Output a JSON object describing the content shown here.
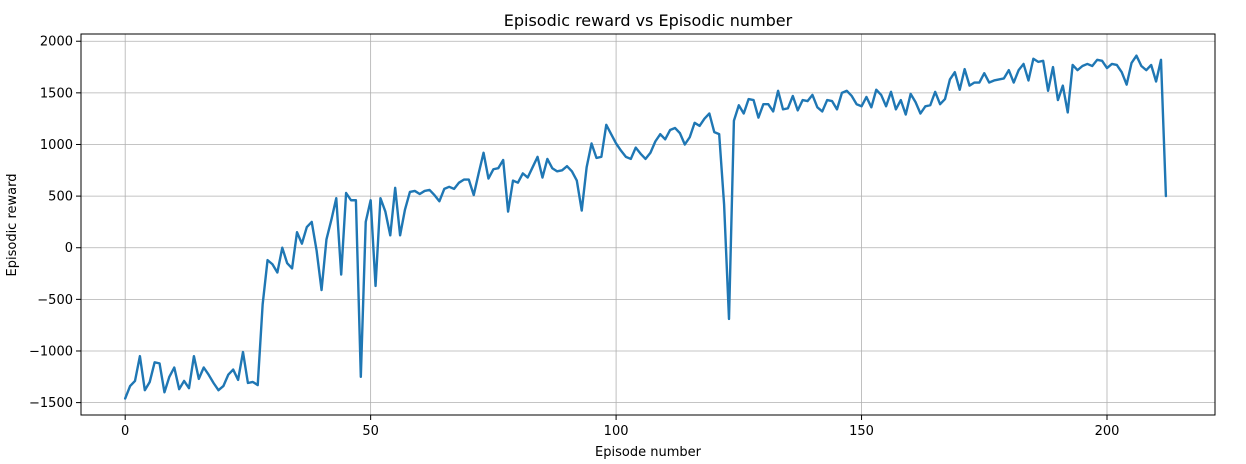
{
  "chart_data": {
    "type": "line",
    "title": "Episodic reward vs Episodic number",
    "xlabel": "Episode number",
    "ylabel": "Episodic reward",
    "xlim": [
      -9,
      222
    ],
    "ylim": [
      -1620,
      2070
    ],
    "xticks": [
      0,
      50,
      100,
      150,
      200
    ],
    "yticks": [
      -1500,
      -1000,
      -500,
      0,
      500,
      1000,
      1500,
      2000
    ],
    "grid": true,
    "line_color": "#1f77b4",
    "series": [
      {
        "values": [
          -1460,
          -1340,
          -1290,
          -1050,
          -1380,
          -1300,
          -1110,
          -1120,
          -1400,
          -1250,
          -1160,
          -1370,
          -1290,
          -1360,
          -1050,
          -1270,
          -1160,
          -1230,
          -1310,
          -1380,
          -1340,
          -1230,
          -1180,
          -1280,
          -1010,
          -1310,
          -1300,
          -1330,
          -550,
          -120,
          -160,
          -240,
          0,
          -150,
          -200,
          150,
          40,
          200,
          250,
          -30,
          -410,
          80,
          270,
          480,
          -260,
          530,
          460,
          460,
          -1250,
          250,
          460,
          -370,
          480,
          350,
          120,
          580,
          120,
          370,
          540,
          550,
          520,
          550,
          560,
          510,
          450,
          570,
          590,
          570,
          630,
          660,
          660,
          510,
          720,
          920,
          670,
          760,
          770,
          850,
          350,
          650,
          630,
          720,
          680,
          780,
          880,
          680,
          860,
          770,
          740,
          750,
          790,
          740,
          650,
          360,
          780,
          1010,
          870,
          880,
          1190,
          1100,
          1010,
          940,
          880,
          860,
          970,
          910,
          860,
          920,
          1030,
          1100,
          1050,
          1140,
          1160,
          1110,
          1000,
          1070,
          1210,
          1180,
          1250,
          1300,
          1120,
          1100,
          420,
          -690,
          1230,
          1380,
          1300,
          1440,
          1430,
          1260,
          1390,
          1390,
          1320,
          1520,
          1340,
          1350,
          1470,
          1330,
          1430,
          1420,
          1480,
          1360,
          1320,
          1430,
          1420,
          1340,
          1500,
          1520,
          1470,
          1390,
          1370,
          1460,
          1360,
          1530,
          1480,
          1370,
          1510,
          1340,
          1430,
          1290,
          1490,
          1410,
          1300,
          1370,
          1380,
          1510,
          1390,
          1440,
          1630,
          1700,
          1530,
          1730,
          1570,
          1600,
          1600,
          1690,
          1600,
          1620,
          1630,
          1640,
          1720,
          1600,
          1720,
          1780,
          1620,
          1830,
          1800,
          1810,
          1520,
          1750,
          1430,
          1570,
          1310,
          1770,
          1720,
          1760,
          1780,
          1760,
          1820,
          1810,
          1740,
          1780,
          1770,
          1700,
          1580,
          1790,
          1860,
          1760,
          1720,
          1770,
          1610,
          1820,
          500
        ]
      }
    ]
  }
}
